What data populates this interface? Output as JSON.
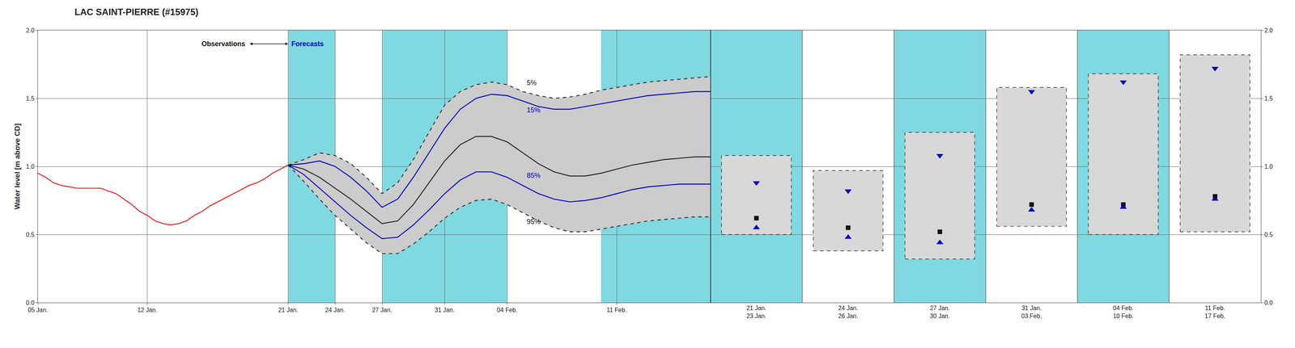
{
  "chart_data": [
    {
      "type": "line",
      "title": "LAC SAINT-PIERRE (#15975)",
      "ylabel": "Water level [m above CD]",
      "xlim": [
        5,
        48
      ],
      "xticks": [
        {
          "value": 5,
          "label": "05 Jan."
        },
        {
          "value": 12,
          "label": "12 Jan."
        },
        {
          "value": 21,
          "label": "21 Jan."
        },
        {
          "value": 24,
          "label": "24 Jan."
        },
        {
          "value": 27,
          "label": "27 Jan."
        },
        {
          "value": 31,
          "label": "31 Jan."
        },
        {
          "value": 35,
          "label": "04 Feb."
        },
        {
          "value": 42,
          "label": "11 Feb."
        }
      ],
      "ylim": [
        0.0,
        2.0
      ],
      "yticks": [
        {
          "value": 0.0,
          "label": "0.0"
        },
        0.5,
        {
          "value": 1.0,
          "label": "1.0"
        },
        1.5,
        {
          "value": 2.0,
          "label": "2.0"
        }
      ],
      "grid": true,
      "bands": {
        "color": "#80d8e0",
        "ranges": [
          [
            21,
            24
          ],
          [
            27,
            35
          ],
          [
            41,
            48
          ]
        ]
      },
      "series": [
        {
          "type": "range_area",
          "color": "#cccccc",
          "x": [
            21,
            22,
            23,
            24,
            25,
            26,
            27,
            28,
            29,
            30,
            31,
            32,
            33,
            34,
            35,
            36,
            37,
            38,
            39,
            40,
            41,
            42,
            43,
            44,
            45,
            46,
            47,
            48
          ],
          "low": [
            1.01,
            0.89,
            0.76,
            0.64,
            0.54,
            0.44,
            0.36,
            0.36,
            0.43,
            0.52,
            0.62,
            0.7,
            0.75,
            0.76,
            0.72,
            0.66,
            0.6,
            0.55,
            0.52,
            0.52,
            0.54,
            0.56,
            0.58,
            0.6,
            0.61,
            0.62,
            0.63,
            0.63
          ],
          "high": [
            1.01,
            1.05,
            1.1,
            1.08,
            1.02,
            0.92,
            0.8,
            0.88,
            1.05,
            1.25,
            1.45,
            1.55,
            1.6,
            1.62,
            1.6,
            1.55,
            1.52,
            1.5,
            1.51,
            1.53,
            1.56,
            1.58,
            1.6,
            1.62,
            1.63,
            1.64,
            1.65,
            1.66
          ]
        },
        {
          "type": "line",
          "color": "#333333",
          "line_style": "dashed",
          "x": [
            21,
            22,
            23,
            24,
            25,
            26,
            27,
            28,
            29,
            30,
            31,
            32,
            33,
            34,
            35,
            36,
            37,
            38,
            39,
            40,
            41,
            42,
            43,
            44,
            45,
            46,
            47,
            48
          ],
          "values": [
            1.01,
            1.05,
            1.1,
            1.08,
            1.02,
            0.92,
            0.8,
            0.88,
            1.05,
            1.25,
            1.45,
            1.55,
            1.6,
            1.62,
            1.6,
            1.55,
            1.52,
            1.5,
            1.51,
            1.53,
            1.56,
            1.58,
            1.6,
            1.62,
            1.63,
            1.64,
            1.65,
            1.66
          ]
        },
        {
          "type": "line",
          "color": "#333333",
          "line_style": "dashed",
          "x": [
            21,
            22,
            23,
            24,
            25,
            26,
            27,
            28,
            29,
            30,
            31,
            32,
            33,
            34,
            35,
            36,
            37,
            38,
            39,
            40,
            41,
            42,
            43,
            44,
            45,
            46,
            47,
            48
          ],
          "values": [
            1.01,
            0.89,
            0.76,
            0.64,
            0.54,
            0.44,
            0.36,
            0.36,
            0.43,
            0.52,
            0.62,
            0.7,
            0.75,
            0.76,
            0.72,
            0.66,
            0.6,
            0.55,
            0.52,
            0.52,
            0.54,
            0.56,
            0.58,
            0.6,
            0.61,
            0.62,
            0.63,
            0.63
          ]
        },
        {
          "type": "line",
          "color": "#0000bb",
          "x": [
            21,
            22,
            23,
            24,
            25,
            26,
            27,
            28,
            29,
            30,
            31,
            32,
            33,
            34,
            35,
            36,
            37,
            38,
            39,
            40,
            41,
            42,
            43,
            44,
            45,
            46,
            47,
            48
          ],
          "values": [
            1.01,
            1.02,
            1.04,
            1.0,
            0.92,
            0.82,
            0.7,
            0.76,
            0.92,
            1.1,
            1.28,
            1.42,
            1.5,
            1.53,
            1.52,
            1.48,
            1.44,
            1.42,
            1.42,
            1.44,
            1.46,
            1.48,
            1.5,
            1.52,
            1.53,
            1.54,
            1.55,
            1.55
          ]
        },
        {
          "type": "line",
          "color": "#0000bb",
          "x": [
            21,
            22,
            23,
            24,
            25,
            26,
            27,
            28,
            29,
            30,
            31,
            32,
            33,
            34,
            35,
            36,
            37,
            38,
            39,
            40,
            41,
            42,
            43,
            44,
            45,
            46,
            47,
            48
          ],
          "values": [
            1.01,
            0.94,
            0.84,
            0.74,
            0.64,
            0.55,
            0.47,
            0.48,
            0.57,
            0.68,
            0.8,
            0.9,
            0.96,
            0.96,
            0.92,
            0.86,
            0.8,
            0.76,
            0.74,
            0.75,
            0.77,
            0.8,
            0.83,
            0.85,
            0.86,
            0.87,
            0.87,
            0.87
          ]
        },
        {
          "type": "line",
          "color": "#222222",
          "x": [
            21,
            22,
            23,
            24,
            25,
            26,
            27,
            28,
            29,
            30,
            31,
            32,
            33,
            34,
            35,
            36,
            37,
            38,
            39,
            40,
            41,
            42,
            43,
            44,
            45,
            46,
            47,
            48
          ],
          "values": [
            1.01,
            0.98,
            0.92,
            0.84,
            0.76,
            0.67,
            0.58,
            0.6,
            0.72,
            0.88,
            1.04,
            1.16,
            1.22,
            1.22,
            1.18,
            1.1,
            1.02,
            0.96,
            0.93,
            0.93,
            0.95,
            0.98,
            1.01,
            1.03,
            1.05,
            1.06,
            1.07,
            1.07
          ]
        },
        {
          "type": "line",
          "color": "#dd2222",
          "x": [
            5,
            5.5,
            6,
            6.5,
            7,
            7.5,
            8,
            8.5,
            9,
            9.5,
            10,
            10.5,
            11,
            11.5,
            12,
            12.5,
            13,
            13.5,
            14,
            14.5,
            15,
            15.5,
            16,
            16.5,
            17,
            17.5,
            18,
            18.5,
            19,
            19.5,
            20,
            20.5,
            21
          ],
          "values": [
            0.95,
            0.92,
            0.88,
            0.86,
            0.85,
            0.84,
            0.84,
            0.84,
            0.84,
            0.82,
            0.8,
            0.76,
            0.72,
            0.67,
            0.64,
            0.6,
            0.58,
            0.57,
            0.58,
            0.6,
            0.64,
            0.67,
            0.71,
            0.74,
            0.77,
            0.8,
            0.83,
            0.86,
            0.88,
            0.91,
            0.95,
            0.98,
            1.01
          ]
        }
      ],
      "arrow": {
        "x": [
          18.5,
          21.0
        ],
        "y": 1.9
      },
      "annotations": [
        {
          "text": "Observations",
          "x": 18.3,
          "y": 1.9,
          "color": "#111111"
        },
        {
          "text": "Forecasts",
          "x": 21.15,
          "y": 1.9,
          "color": "#0000bb"
        },
        {
          "text": "5%",
          "x": 36.2,
          "y": 1.58,
          "color": "#111111"
        },
        {
          "text": "15%",
          "x": 36.2,
          "y": 1.38,
          "color": "#0000bb"
        },
        {
          "text": "85%",
          "x": 36.2,
          "y": 0.9,
          "color": "#0000bb"
        },
        {
          "text": "95%",
          "x": 36.2,
          "y": 0.56,
          "color": "#111111"
        }
      ]
    },
    {
      "type": "range_box",
      "categories": [
        "21 Jan.\n23 Jan.",
        "24 Jan.\n26 Jan.",
        "27 Jan.\n30 Jan.",
        "31 Jan.\n03 Feb.",
        "04 Feb.\n10 Feb.",
        "11 Feb.\n17 Feb."
      ],
      "ylim": [
        0.0,
        2.0
      ],
      "yticks": [
        {
          "value": 0.0,
          "label": "0.0"
        },
        0.5,
        {
          "value": 1.0,
          "label": "1.0"
        },
        1.5,
        {
          "value": 2.0,
          "label": "2.0"
        }
      ],
      "grid": true,
      "shade_color": "#80d8e0",
      "shaded": [
        true,
        false,
        true,
        false,
        true,
        false
      ],
      "box": {
        "color": "#d8d8d8",
        "edge_color": "#222222",
        "line_style": "dashed",
        "high": [
          1.08,
          0.97,
          1.25,
          1.58,
          1.68,
          1.82
        ],
        "low": [
          0.5,
          0.38,
          0.32,
          0.56,
          0.5,
          0.52
        ]
      },
      "series": [
        {
          "marker": "triangle-down",
          "color": "#0000bb",
          "values": [
            0.88,
            0.82,
            1.08,
            1.55,
            1.62,
            1.72
          ]
        },
        {
          "marker": "square",
          "color": "#111111",
          "values": [
            0.62,
            0.55,
            0.52,
            0.72,
            0.72,
            0.78
          ]
        },
        {
          "marker": "triangle-up",
          "color": "#0000bb",
          "values": [
            0.55,
            0.48,
            0.44,
            0.68,
            0.7,
            0.76
          ]
        }
      ]
    }
  ]
}
